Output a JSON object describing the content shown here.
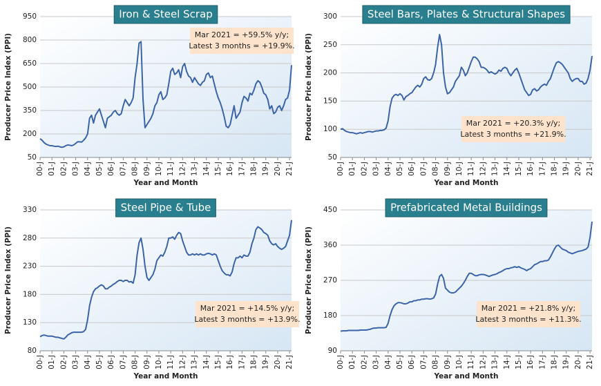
{
  "chart_data": [
    {
      "type": "line",
      "title": "Iron & Steel Scrap",
      "x_label": "Year and Month",
      "y_label": "Producer Price Index (PPI)",
      "annotations": [
        "Mar 2021 = +59.5% y/y;",
        "Latest 3 months = +19.9%."
      ],
      "color": "#3b63a8",
      "grid": true,
      "ylim": [
        50,
        950
      ],
      "yticks": [
        50,
        200,
        350,
        500,
        650,
        800,
        950
      ],
      "categories": [
        "00-J",
        null,
        null,
        null,
        null,
        null,
        "01-J",
        null,
        null,
        null,
        null,
        null,
        "02-J",
        null,
        null,
        null,
        null,
        null,
        "03-J",
        null,
        null,
        null,
        null,
        null,
        "04-J",
        null,
        null,
        null,
        null,
        null,
        "05-J",
        null,
        null,
        null,
        null,
        null,
        "06-J",
        null,
        null,
        null,
        null,
        null,
        "07-J",
        null,
        null,
        null,
        null,
        null,
        "08-J",
        null,
        null,
        null,
        null,
        null,
        "09-J",
        null,
        null,
        null,
        null,
        null,
        "10-J",
        null,
        null,
        null,
        null,
        null,
        "11-J",
        null,
        null,
        null,
        null,
        null,
        "12-J",
        null,
        null,
        null,
        null,
        null,
        "13-J",
        null,
        null,
        null,
        null,
        null,
        "14-J",
        null,
        null,
        null,
        null,
        null,
        "15-J",
        null,
        null,
        null,
        null,
        null,
        "16-J",
        null,
        null,
        null,
        null,
        null,
        "17-J",
        null,
        null,
        null,
        null,
        null,
        "18-J",
        null,
        null,
        null,
        null,
        null,
        "19-J",
        null,
        null,
        null,
        null,
        null,
        "20-J",
        null,
        null,
        null,
        null,
        null,
        "21-J",
        null
      ],
      "values": [
        170,
        160,
        145,
        135,
        130,
        125,
        125,
        122,
        120,
        122,
        118,
        115,
        118,
        125,
        130,
        128,
        125,
        130,
        140,
        150,
        150,
        148,
        160,
        175,
        200,
        300,
        320,
        270,
        320,
        340,
        360,
        320,
        280,
        240,
        300,
        310,
        320,
        340,
        350,
        330,
        320,
        330,
        380,
        420,
        400,
        380,
        400,
        430,
        560,
        650,
        780,
        790,
        420,
        240,
        260,
        280,
        300,
        330,
        380,
        400,
        450,
        470,
        420,
        430,
        450,
        520,
        600,
        620,
        580,
        590,
        610,
        560,
        630,
        650,
        600,
        570,
        560,
        530,
        560,
        540,
        520,
        510,
        530,
        540,
        580,
        590,
        560,
        570,
        520,
        470,
        430,
        400,
        360,
        310,
        250,
        240,
        260,
        320,
        380,
        300,
        320,
        340,
        400,
        440,
        430,
        410,
        460,
        450,
        480,
        520,
        540,
        530,
        500,
        460,
        450,
        420,
        360,
        380,
        330,
        340,
        370,
        380,
        350,
        380,
        420,
        430,
        480,
        640
      ]
    },
    {
      "type": "line",
      "title": "Steel Bars, Plates & Structural Shapes",
      "x_label": "Year and Month",
      "y_label": "Producer Price Index (PPI)",
      "annotations": [
        "Mar 2021 = +20.3% y/y;",
        "Latest 3 months = +21.9%."
      ],
      "color": "#3b63a8",
      "grid": true,
      "ylim": [
        50,
        300
      ],
      "yticks": [
        50,
        100,
        150,
        200,
        250,
        300
      ],
      "categories": [
        "00-J",
        null,
        null,
        null,
        null,
        null,
        "01-J",
        null,
        null,
        null,
        null,
        null,
        "02-J",
        null,
        null,
        null,
        null,
        null,
        "03-J",
        null,
        null,
        null,
        null,
        null,
        "04-J",
        null,
        null,
        null,
        null,
        null,
        "05-J",
        null,
        null,
        null,
        null,
        null,
        "06-J",
        null,
        null,
        null,
        null,
        null,
        "07-J",
        null,
        null,
        null,
        null,
        null,
        "08-J",
        null,
        null,
        null,
        null,
        null,
        "09-J",
        null,
        null,
        null,
        null,
        null,
        "10-J",
        null,
        null,
        null,
        null,
        null,
        "11-J",
        null,
        null,
        null,
        null,
        null,
        "12-J",
        null,
        null,
        null,
        null,
        null,
        "13-J",
        null,
        null,
        null,
        null,
        null,
        "14-J",
        null,
        null,
        null,
        null,
        null,
        "15-J",
        null,
        null,
        null,
        null,
        null,
        "16-J",
        null,
        null,
        null,
        null,
        null,
        "17-J",
        null,
        null,
        null,
        null,
        null,
        "18-J",
        null,
        null,
        null,
        null,
        null,
        "19-J",
        null,
        null,
        null,
        null,
        null,
        "20-J",
        null,
        null,
        null,
        null,
        null,
        "21-J",
        null
      ],
      "values": [
        100,
        101,
        98,
        96,
        95,
        94,
        94,
        93,
        92,
        93,
        94,
        93,
        94,
        95,
        96,
        96,
        95,
        96,
        97,
        97,
        98,
        98,
        99,
        102,
        115,
        140,
        155,
        160,
        162,
        160,
        163,
        160,
        152,
        158,
        160,
        163,
        165,
        170,
        175,
        178,
        175,
        180,
        190,
        193,
        188,
        187,
        190,
        200,
        215,
        245,
        268,
        250,
        200,
        175,
        163,
        165,
        170,
        175,
        185,
        190,
        195,
        210,
        205,
        195,
        200,
        210,
        220,
        228,
        228,
        225,
        220,
        210,
        210,
        208,
        205,
        200,
        202,
        200,
        198,
        200,
        205,
        203,
        208,
        210,
        208,
        200,
        195,
        200,
        205,
        208,
        200,
        190,
        180,
        170,
        165,
        160,
        162,
        170,
        172,
        168,
        170,
        175,
        178,
        180,
        178,
        185,
        190,
        200,
        210,
        218,
        220,
        218,
        215,
        210,
        205,
        200,
        190,
        185,
        188,
        190,
        190,
        185,
        185,
        180,
        182,
        190,
        205,
        230
      ]
    },
    {
      "type": "line",
      "title": "Steel Pipe & Tube",
      "x_label": "Year and Month",
      "y_label": "Producer Price Index (PPI)",
      "annotations": [
        "Mar 2021 = +14.5% y/y;",
        "Latest 3 months = +13.9%."
      ],
      "color": "#3b63a8",
      "grid": true,
      "ylim": [
        80,
        330
      ],
      "yticks": [
        80,
        130,
        180,
        230,
        280,
        330
      ],
      "categories": [
        "00-J",
        null,
        null,
        null,
        null,
        null,
        "01-J",
        null,
        null,
        null,
        null,
        null,
        "02-J",
        null,
        null,
        null,
        null,
        null,
        "03-J",
        null,
        null,
        null,
        null,
        null,
        "04-J",
        null,
        null,
        null,
        null,
        null,
        "05-J",
        null,
        null,
        null,
        null,
        null,
        "06-J",
        null,
        null,
        null,
        null,
        null,
        "07-J",
        null,
        null,
        null,
        null,
        null,
        "08-J",
        null,
        null,
        null,
        null,
        null,
        "09-J",
        null,
        null,
        null,
        null,
        null,
        "10-J",
        null,
        null,
        null,
        null,
        null,
        "11-J",
        null,
        null,
        null,
        null,
        null,
        "12-J",
        null,
        null,
        null,
        null,
        null,
        "13-J",
        null,
        null,
        null,
        null,
        null,
        "14-J",
        null,
        null,
        null,
        null,
        null,
        "15-J",
        null,
        null,
        null,
        null,
        null,
        "16-J",
        null,
        null,
        null,
        null,
        null,
        "17-J",
        null,
        null,
        null,
        null,
        null,
        "18-J",
        null,
        null,
        null,
        null,
        null,
        "19-J",
        null,
        null,
        null,
        null,
        null,
        "20-J",
        null,
        null,
        null,
        null,
        null,
        "21-J",
        null
      ],
      "values": [
        105,
        107,
        108,
        107,
        106,
        106,
        106,
        105,
        104,
        104,
        103,
        102,
        101,
        104,
        108,
        110,
        112,
        113,
        113,
        113,
        113,
        113,
        114,
        118,
        135,
        160,
        175,
        185,
        190,
        192,
        195,
        197,
        195,
        190,
        190,
        193,
        195,
        198,
        200,
        203,
        205,
        205,
        203,
        205,
        205,
        202,
        203,
        200,
        215,
        250,
        272,
        280,
        260,
        230,
        210,
        205,
        210,
        215,
        225,
        240,
        245,
        250,
        248,
        255,
        265,
        280,
        280,
        282,
        278,
        285,
        290,
        288,
        275,
        265,
        255,
        250,
        250,
        252,
        250,
        252,
        250,
        252,
        250,
        250,
        252,
        253,
        252,
        250,
        252,
        250,
        240,
        230,
        222,
        218,
        215,
        215,
        213,
        220,
        235,
        245,
        245,
        248,
        245,
        250,
        248,
        248,
        255,
        270,
        280,
        295,
        300,
        298,
        295,
        290,
        288,
        285,
        275,
        270,
        268,
        270,
        265,
        262,
        260,
        262,
        265,
        275,
        285,
        312
      ]
    },
    {
      "type": "line",
      "title": "Prefabricated Metal Buildings",
      "x_label": "Year and Month",
      "y_label": "Producer Price Index (PPI)",
      "annotations": [
        "Mar 2021 = +21.8% y/y;",
        "Latest 3 months = +11.3%."
      ],
      "color": "#3b63a8",
      "grid": true,
      "ylim": [
        90,
        450
      ],
      "yticks": [
        90,
        180,
        270,
        360,
        450
      ],
      "categories": [
        "00-J",
        null,
        null,
        null,
        null,
        null,
        "01-J",
        null,
        null,
        null,
        null,
        null,
        "02-J",
        null,
        null,
        null,
        null,
        null,
        "03-J",
        null,
        null,
        null,
        null,
        null,
        "04-J",
        null,
        null,
        null,
        null,
        null,
        "05-J",
        null,
        null,
        null,
        null,
        null,
        "06-J",
        null,
        null,
        null,
        null,
        null,
        "07-J",
        null,
        null,
        null,
        null,
        null,
        "08-J",
        null,
        null,
        null,
        null,
        null,
        "09-J",
        null,
        null,
        null,
        null,
        null,
        "10-J",
        null,
        null,
        null,
        null,
        null,
        "11-J",
        null,
        null,
        null,
        null,
        null,
        "12-J",
        null,
        null,
        null,
        null,
        null,
        "13-J",
        null,
        null,
        null,
        null,
        null,
        "14-J",
        null,
        null,
        null,
        null,
        null,
        "15-J",
        null,
        null,
        null,
        null,
        null,
        "16-J",
        null,
        null,
        null,
        null,
        null,
        "17-J",
        null,
        null,
        null,
        null,
        null,
        "18-J",
        null,
        null,
        null,
        null,
        null,
        "19-J",
        null,
        null,
        null,
        null,
        null,
        "20-J",
        null,
        null,
        null,
        null,
        null,
        "21-J",
        null
      ],
      "values": [
        140,
        141,
        141,
        141,
        142,
        142,
        142,
        142,
        142,
        142,
        143,
        143,
        143,
        143,
        144,
        145,
        147,
        148,
        148,
        149,
        149,
        149,
        149,
        150,
        160,
        180,
        195,
        205,
        210,
        213,
        213,
        212,
        210,
        210,
        212,
        215,
        215,
        218,
        218,
        220,
        220,
        222,
        222,
        223,
        223,
        222,
        223,
        225,
        235,
        260,
        280,
        285,
        275,
        250,
        245,
        240,
        238,
        238,
        240,
        245,
        250,
        255,
        262,
        270,
        280,
        288,
        288,
        285,
        282,
        282,
        284,
        285,
        285,
        284,
        282,
        280,
        282,
        284,
        285,
        287,
        290,
        292,
        295,
        298,
        300,
        300,
        302,
        303,
        305,
        303,
        305,
        302,
        300,
        298,
        295,
        298,
        300,
        305,
        310,
        312,
        315,
        318,
        318,
        320,
        320,
        322,
        330,
        340,
        350,
        358,
        360,
        355,
        350,
        348,
        346,
        342,
        340,
        338,
        340,
        342,
        344,
        345,
        346,
        348,
        350,
        355,
        380,
        420
      ]
    }
  ]
}
